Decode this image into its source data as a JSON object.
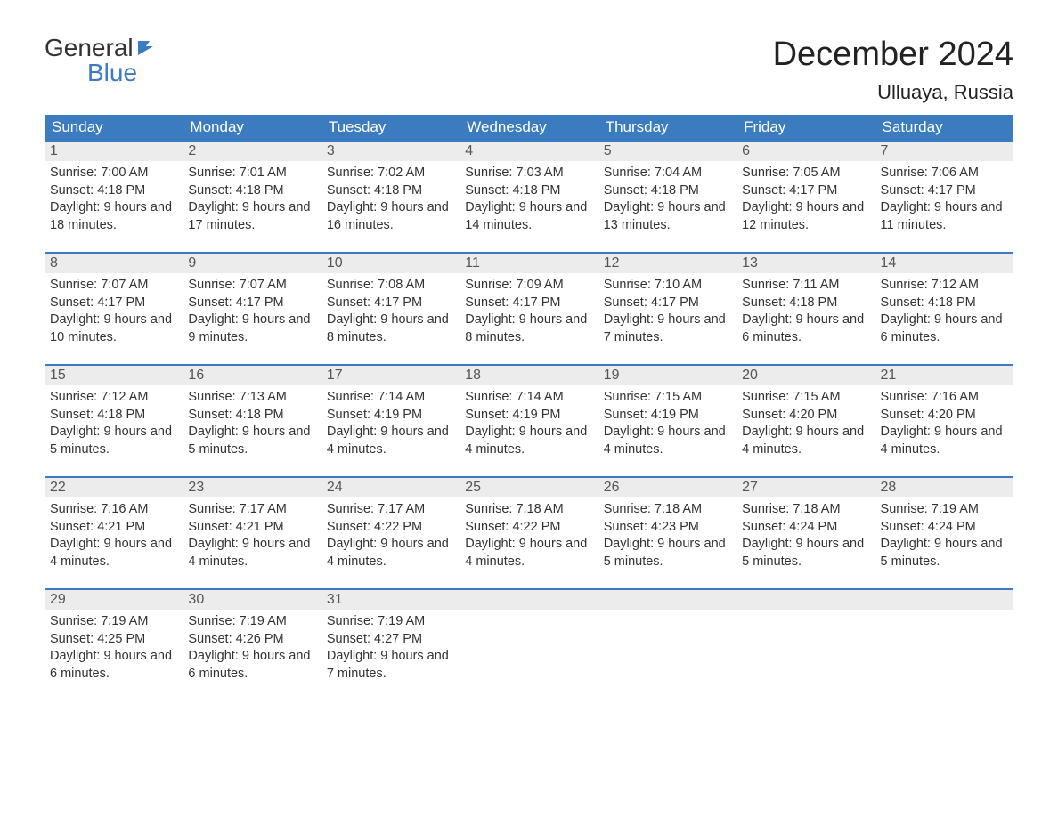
{
  "brand": {
    "line1": "General",
    "line2": "Blue"
  },
  "title": "December 2024",
  "location": "Ulluaya, Russia",
  "colors": {
    "header_bg": "#3b7bbf",
    "header_text": "#ffffff",
    "daynum_bg": "#ececec",
    "body_text": "#333333",
    "rule": "#3b7bbf"
  },
  "typography": {
    "title_fontsize": 38,
    "location_fontsize": 22,
    "dayheader_fontsize": 17,
    "cell_fontsize": 14.5
  },
  "day_headers": [
    "Sunday",
    "Monday",
    "Tuesday",
    "Wednesday",
    "Thursday",
    "Friday",
    "Saturday"
  ],
  "weeks": [
    [
      {
        "n": "1",
        "sunrise": "7:00 AM",
        "sunset": "4:18 PM",
        "daylight": "9 hours and 18 minutes."
      },
      {
        "n": "2",
        "sunrise": "7:01 AM",
        "sunset": "4:18 PM",
        "daylight": "9 hours and 17 minutes."
      },
      {
        "n": "3",
        "sunrise": "7:02 AM",
        "sunset": "4:18 PM",
        "daylight": "9 hours and 16 minutes."
      },
      {
        "n": "4",
        "sunrise": "7:03 AM",
        "sunset": "4:18 PM",
        "daylight": "9 hours and 14 minutes."
      },
      {
        "n": "5",
        "sunrise": "7:04 AM",
        "sunset": "4:18 PM",
        "daylight": "9 hours and 13 minutes."
      },
      {
        "n": "6",
        "sunrise": "7:05 AM",
        "sunset": "4:17 PM",
        "daylight": "9 hours and 12 minutes."
      },
      {
        "n": "7",
        "sunrise": "7:06 AM",
        "sunset": "4:17 PM",
        "daylight": "9 hours and 11 minutes."
      }
    ],
    [
      {
        "n": "8",
        "sunrise": "7:07 AM",
        "sunset": "4:17 PM",
        "daylight": "9 hours and 10 minutes."
      },
      {
        "n": "9",
        "sunrise": "7:07 AM",
        "sunset": "4:17 PM",
        "daylight": "9 hours and 9 minutes."
      },
      {
        "n": "10",
        "sunrise": "7:08 AM",
        "sunset": "4:17 PM",
        "daylight": "9 hours and 8 minutes."
      },
      {
        "n": "11",
        "sunrise": "7:09 AM",
        "sunset": "4:17 PM",
        "daylight": "9 hours and 8 minutes."
      },
      {
        "n": "12",
        "sunrise": "7:10 AM",
        "sunset": "4:17 PM",
        "daylight": "9 hours and 7 minutes."
      },
      {
        "n": "13",
        "sunrise": "7:11 AM",
        "sunset": "4:18 PM",
        "daylight": "9 hours and 6 minutes."
      },
      {
        "n": "14",
        "sunrise": "7:12 AM",
        "sunset": "4:18 PM",
        "daylight": "9 hours and 6 minutes."
      }
    ],
    [
      {
        "n": "15",
        "sunrise": "7:12 AM",
        "sunset": "4:18 PM",
        "daylight": "9 hours and 5 minutes."
      },
      {
        "n": "16",
        "sunrise": "7:13 AM",
        "sunset": "4:18 PM",
        "daylight": "9 hours and 5 minutes."
      },
      {
        "n": "17",
        "sunrise": "7:14 AM",
        "sunset": "4:19 PM",
        "daylight": "9 hours and 4 minutes."
      },
      {
        "n": "18",
        "sunrise": "7:14 AM",
        "sunset": "4:19 PM",
        "daylight": "9 hours and 4 minutes."
      },
      {
        "n": "19",
        "sunrise": "7:15 AM",
        "sunset": "4:19 PM",
        "daylight": "9 hours and 4 minutes."
      },
      {
        "n": "20",
        "sunrise": "7:15 AM",
        "sunset": "4:20 PM",
        "daylight": "9 hours and 4 minutes."
      },
      {
        "n": "21",
        "sunrise": "7:16 AM",
        "sunset": "4:20 PM",
        "daylight": "9 hours and 4 minutes."
      }
    ],
    [
      {
        "n": "22",
        "sunrise": "7:16 AM",
        "sunset": "4:21 PM",
        "daylight": "9 hours and 4 minutes."
      },
      {
        "n": "23",
        "sunrise": "7:17 AM",
        "sunset": "4:21 PM",
        "daylight": "9 hours and 4 minutes."
      },
      {
        "n": "24",
        "sunrise": "7:17 AM",
        "sunset": "4:22 PM",
        "daylight": "9 hours and 4 minutes."
      },
      {
        "n": "25",
        "sunrise": "7:18 AM",
        "sunset": "4:22 PM",
        "daylight": "9 hours and 4 minutes."
      },
      {
        "n": "26",
        "sunrise": "7:18 AM",
        "sunset": "4:23 PM",
        "daylight": "9 hours and 5 minutes."
      },
      {
        "n": "27",
        "sunrise": "7:18 AM",
        "sunset": "4:24 PM",
        "daylight": "9 hours and 5 minutes."
      },
      {
        "n": "28",
        "sunrise": "7:19 AM",
        "sunset": "4:24 PM",
        "daylight": "9 hours and 5 minutes."
      }
    ],
    [
      {
        "n": "29",
        "sunrise": "7:19 AM",
        "sunset": "4:25 PM",
        "daylight": "9 hours and 6 minutes."
      },
      {
        "n": "30",
        "sunrise": "7:19 AM",
        "sunset": "4:26 PM",
        "daylight": "9 hours and 6 minutes."
      },
      {
        "n": "31",
        "sunrise": "7:19 AM",
        "sunset": "4:27 PM",
        "daylight": "9 hours and 7 minutes."
      },
      null,
      null,
      null,
      null
    ]
  ],
  "labels": {
    "sunrise_prefix": "Sunrise: ",
    "sunset_prefix": "Sunset: ",
    "daylight_prefix": "Daylight: "
  }
}
